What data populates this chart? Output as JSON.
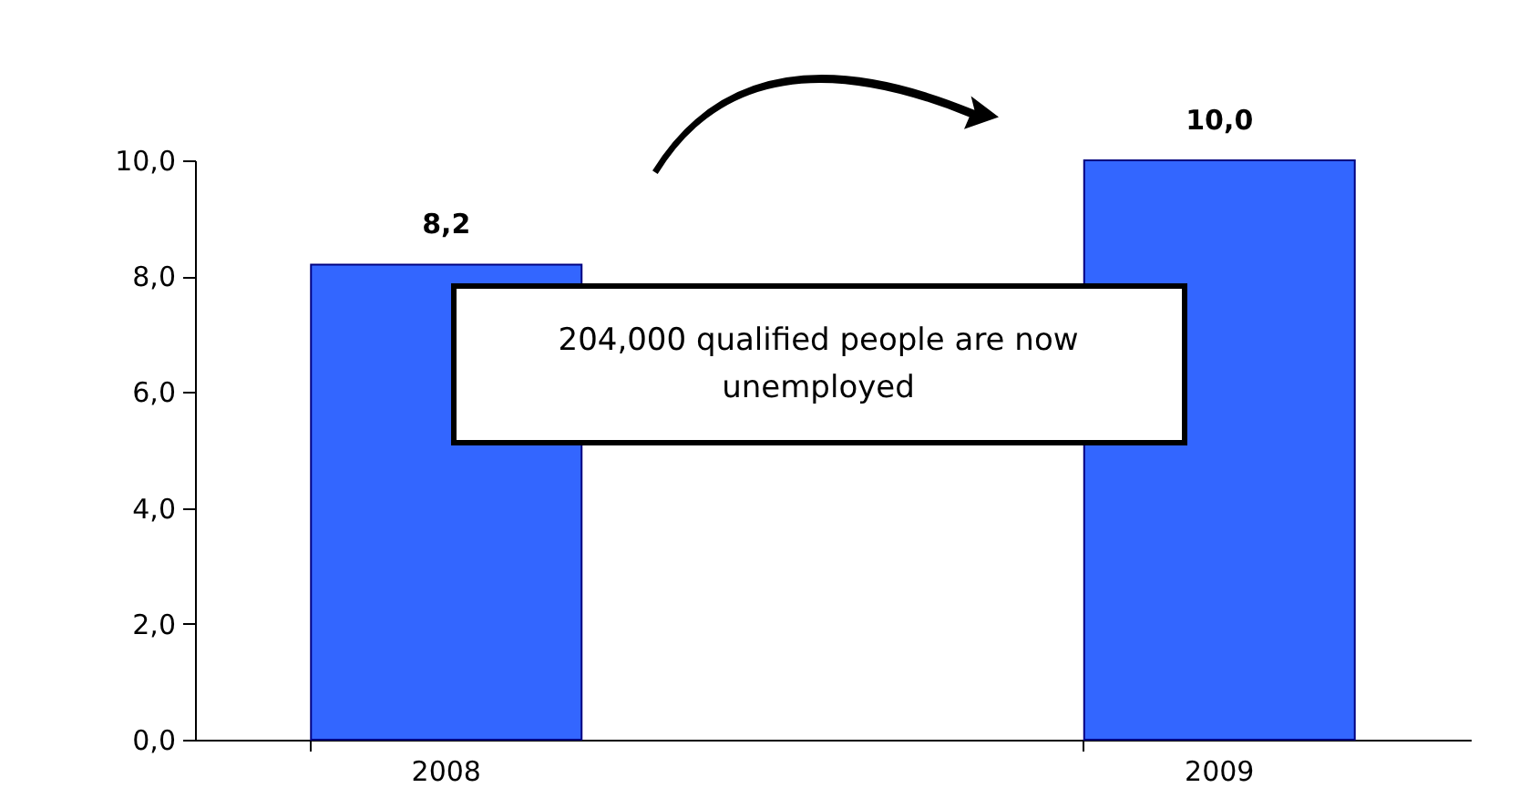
{
  "chart_data": {
    "type": "bar",
    "categories": [
      "2008",
      "2009"
    ],
    "values": [
      8.2,
      10.0
    ],
    "value_labels": [
      "8,2",
      "10,0"
    ],
    "color": "#3366ff",
    "ylim": [
      0,
      10
    ],
    "yticks": [
      {
        "value": 0,
        "label": "0,0"
      },
      {
        "value": 2,
        "label": "2,0"
      },
      {
        "value": 4,
        "label": "4,0"
      },
      {
        "value": 6,
        "label": "6,0"
      },
      {
        "value": 8,
        "label": "8,0"
      },
      {
        "value": 10,
        "label": "10,0"
      }
    ],
    "grid": false,
    "annotations": [
      "204,000 qualified people are now unemployed"
    ]
  }
}
